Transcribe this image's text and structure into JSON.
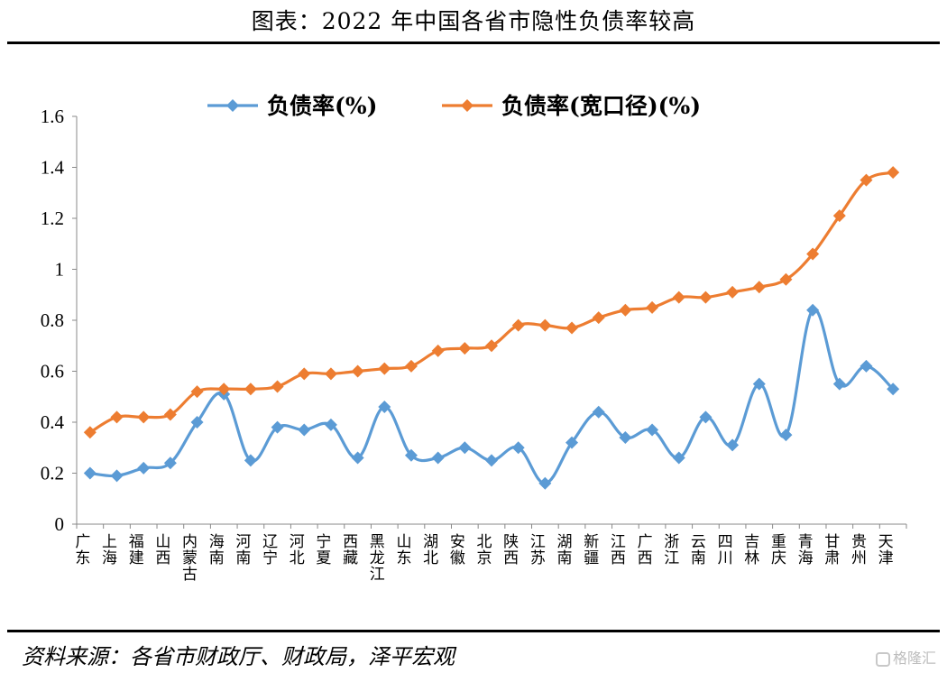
{
  "title": "图表：2022 年中国各省市隐性负债率较高",
  "source": "资料来源：各省市财政厅、财政局，泽平宏观",
  "watermark": "格隆汇",
  "colors": {
    "series1": "#5B9BD5",
    "series2": "#ED7D31"
  },
  "chart_data": {
    "type": "line",
    "categories": [
      "广东",
      "上海",
      "福建",
      "山西",
      "内蒙古",
      "海南",
      "河南",
      "辽宁",
      "河北",
      "宁夏",
      "西藏",
      "黑龙江",
      "山东",
      "湖北",
      "安徽",
      "北京",
      "陕西",
      "江苏",
      "湖南",
      "新疆",
      "江西",
      "广西",
      "浙江",
      "云南",
      "四川",
      "吉林",
      "重庆",
      "青海",
      "甘肃",
      "贵州",
      "天津"
    ],
    "series": [
      {
        "name": "负债率(%)",
        "values": [
          0.2,
          0.19,
          0.22,
          0.24,
          0.4,
          0.51,
          0.25,
          0.38,
          0.37,
          0.39,
          0.26,
          0.46,
          0.27,
          0.26,
          0.3,
          0.25,
          0.3,
          0.16,
          0.32,
          0.44,
          0.34,
          0.37,
          0.26,
          0.42,
          0.31,
          0.55,
          0.35,
          0.84,
          0.55,
          0.62,
          0.53
        ]
      },
      {
        "name": "负债率(宽口径)(%)",
        "values": [
          0.36,
          0.42,
          0.42,
          0.43,
          0.52,
          0.53,
          0.53,
          0.54,
          0.59,
          0.59,
          0.6,
          0.61,
          0.62,
          0.68,
          0.69,
          0.7,
          0.78,
          0.78,
          0.77,
          0.81,
          0.84,
          0.85,
          0.89,
          0.89,
          0.91,
          0.93,
          0.96,
          1.06,
          1.21,
          1.35,
          1.38
        ]
      }
    ],
    "yticks": [
      "0",
      "0.2",
      "0.4",
      "0.6",
      "0.8",
      "1",
      "1.2",
      "1.4",
      "1.6"
    ],
    "ylim": [
      0,
      1.6
    ],
    "grid": false,
    "legend": "top-center"
  }
}
